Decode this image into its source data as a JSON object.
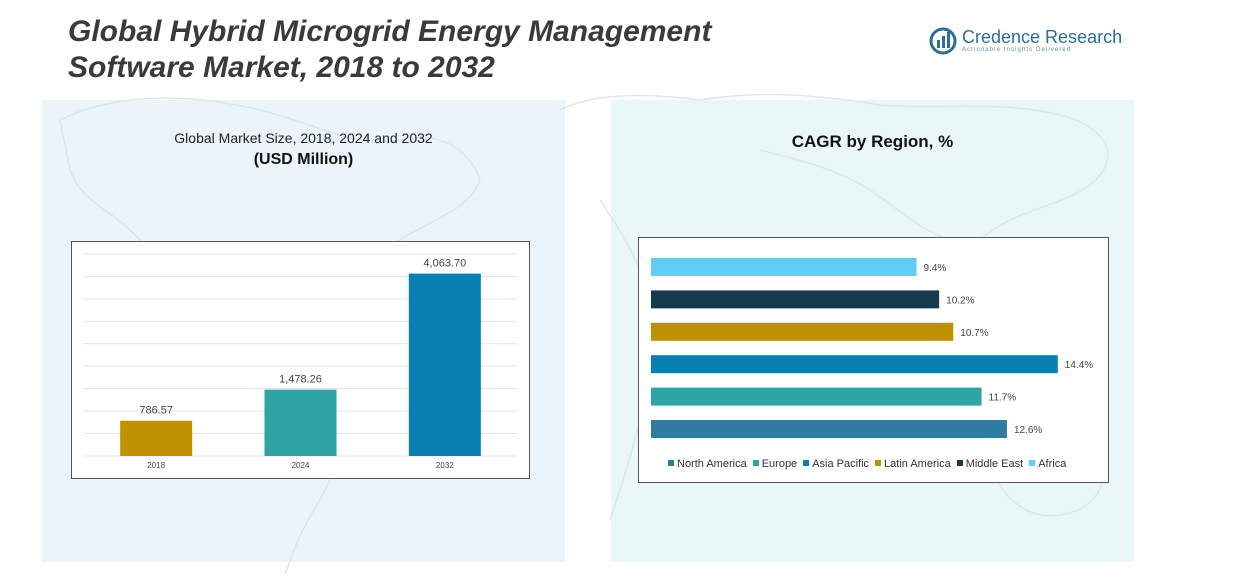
{
  "header": {
    "title_line1": "Global Hybrid Microgrid Energy Management",
    "title_line2": "Software Market, 2018 to 2032"
  },
  "brand": {
    "name": "Credence Research",
    "tagline": "Actionable Insights Delivered",
    "color": "#2e6f96"
  },
  "chart_data": [
    {
      "type": "bar",
      "title": "Global Market Size, 2018, 2024 and 2032",
      "subtitle": "(USD Million)",
      "categories": [
        "2018",
        "2024",
        "2032"
      ],
      "values": [
        786.57,
        1478.26,
        4063.7
      ],
      "labels": [
        "786.57",
        "1,478.26",
        "4,063.70"
      ],
      "colors": [
        "#c09100",
        "#2fa4a5",
        "#0a7fb1"
      ],
      "ylim": [
        0,
        4500
      ],
      "grid": true,
      "legend": "none"
    },
    {
      "type": "bar",
      "orientation": "horizontal",
      "title": "CAGR by Region, %",
      "categories": [
        "Africa",
        "Middle East",
        "Latin America",
        "Asia Pacific",
        "Europe",
        "North America"
      ],
      "values": [
        9.4,
        10.2,
        10.7,
        14.4,
        11.7,
        12.6
      ],
      "labels": [
        "9.4%",
        "10.2%",
        "10.7%",
        "14.4%",
        "11.7%",
        "12.6%"
      ],
      "colors": [
        "#5fd0f4",
        "#163b4c",
        "#c09100",
        "#0a7fb1",
        "#2fa4a5",
        "#2f7ca3"
      ],
      "xlim": [
        0,
        16
      ],
      "legend": "bottom",
      "legend_items": [
        {
          "label": "North America",
          "color": "#2f7ca3"
        },
        {
          "label": "Europe",
          "color": "#2fa4a5"
        },
        {
          "label": "Asia Pacific",
          "color": "#0a7fb1"
        },
        {
          "label": "Latin America",
          "color": "#c09100"
        },
        {
          "label": "Middle East",
          "color": "#163b4c"
        },
        {
          "label": "Africa",
          "color": "#5fd0f4"
        }
      ]
    }
  ]
}
